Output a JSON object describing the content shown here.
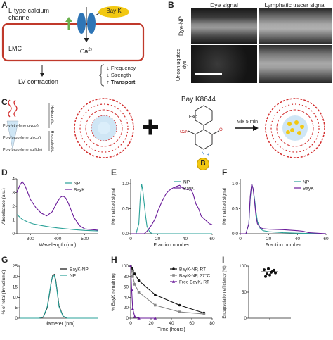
{
  "panel_letters": {
    "A": "A",
    "B": "B",
    "C": "C",
    "D": "D",
    "E": "E",
    "F": "F",
    "G": "G",
    "H": "H",
    "I": "I"
  },
  "panel_a": {
    "channel_label": "L-type calcium channel",
    "bayk": "Bay K",
    "ion": "Ca",
    "ion_sup": "2+",
    "cell": "LMC",
    "outcome": "LV contraction",
    "effects": [
      "Frequency",
      "Strength",
      "Transport"
    ],
    "effect_arrows": [
      "↓",
      "↓",
      "↑"
    ],
    "colors": {
      "membrane": "#c0392b",
      "channel": "#2e75b6",
      "bayk": "#f2c811",
      "arrow": "#6ab04c"
    }
  },
  "panel_b": {
    "col_headers": [
      "Dye signal",
      "Lymphatic tracer signal"
    ],
    "row_labels": [
      "Dye-NP",
      "Unconjugated dye"
    ]
  },
  "panel_c": {
    "layers": [
      "Poly(ethylene glycol)",
      "Poly(propylene glycol)",
      "Poly(propylene sulfide)"
    ],
    "side_labels": [
      "Hydrophilic",
      "Hydrophobic"
    ],
    "drug_name": "Bay K8644",
    "chem": {
      "cf3": "F3C",
      "no2": "O2N",
      "nh": "N",
      "h": "H",
      "o": "O"
    },
    "badge": "B",
    "mix_label": "Mix 5 min"
  },
  "chart_data": [
    {
      "panel": "D",
      "type": "line",
      "xlabel": "Wavelength (nm)",
      "ylabel": "Absorbance (a.u.)",
      "xlim": [
        250,
        550
      ],
      "ylim": [
        0,
        4
      ],
      "xticks": [
        300,
        400,
        500
      ],
      "yticks": [
        0,
        1,
        2,
        3,
        4
      ],
      "series": [
        {
          "name": "NP",
          "color": "#2aa198",
          "x": [
            250,
            270,
            290,
            310,
            340,
            370,
            400,
            430,
            460,
            500,
            550
          ],
          "y": [
            1.4,
            1.05,
            0.85,
            0.72,
            0.6,
            0.5,
            0.42,
            0.36,
            0.3,
            0.24,
            0.2
          ]
        },
        {
          "name": "BayK",
          "color": "#6a1b9a",
          "x": [
            250,
            260,
            270,
            280,
            290,
            300,
            320,
            340,
            360,
            380,
            400,
            410,
            420,
            430,
            440,
            460,
            480,
            500,
            550
          ],
          "y": [
            3.0,
            3.5,
            3.8,
            3.5,
            3.0,
            2.5,
            1.9,
            1.5,
            1.3,
            1.6,
            2.35,
            2.65,
            2.75,
            2.6,
            2.2,
            1.2,
            0.6,
            0.35,
            0.25
          ]
        }
      ]
    },
    {
      "panel": "E",
      "type": "line",
      "xlabel": "Fraction number",
      "ylabel": "Normalized signal",
      "xlim": [
        0,
        60
      ],
      "ylim": [
        0,
        1.1
      ],
      "xticks": [
        0,
        20,
        40,
        60
      ],
      "yticks": [
        0.0,
        0.5,
        1.0
      ],
      "series": [
        {
          "name": "NP",
          "color": "#2aa198",
          "x": [
            0,
            4,
            6,
            7,
            8,
            9,
            10,
            11,
            12,
            14,
            16,
            20,
            60
          ],
          "y": [
            0,
            0,
            0.2,
            0.7,
            1.0,
            0.85,
            0.6,
            0.35,
            0.15,
            0.03,
            0,
            0,
            0
          ]
        },
        {
          "name": "BayK",
          "color": "#6a1b9a",
          "x": [
            0,
            10,
            12,
            14,
            16,
            18,
            20,
            22,
            24,
            26,
            28,
            30,
            32,
            34,
            36,
            38,
            40,
            42,
            44,
            46,
            48,
            50,
            52,
            54,
            56,
            58,
            60
          ],
          "y": [
            0,
            0,
            0.05,
            0.12,
            0.2,
            0.3,
            0.45,
            0.58,
            0.7,
            0.8,
            0.86,
            0.9,
            0.93,
            0.95,
            0.97,
            0.92,
            0.9,
            0.88,
            0.9,
            0.8,
            0.6,
            0.5,
            0.35,
            0.3,
            0.25,
            0.2,
            0.18
          ]
        }
      ]
    },
    {
      "panel": "F",
      "type": "line",
      "xlabel": "Fraction number",
      "ylabel": "Normalized signal",
      "xlim": [
        0,
        60
      ],
      "ylim": [
        0,
        1.1
      ],
      "xticks": [
        0,
        20,
        40,
        60
      ],
      "yticks": [
        0.0,
        0.5,
        1.0
      ],
      "series": [
        {
          "name": "NP",
          "color": "#2aa198",
          "x": [
            0,
            4,
            6,
            7,
            8,
            9,
            10,
            11,
            12,
            14,
            16,
            20,
            30,
            40,
            60
          ],
          "y": [
            0,
            0,
            0.2,
            0.7,
            1.0,
            0.9,
            0.7,
            0.45,
            0.25,
            0.1,
            0.06,
            0.04,
            0.02,
            0.01,
            0
          ]
        },
        {
          "name": "BayK",
          "color": "#6a1b9a",
          "x": [
            0,
            4,
            6,
            7,
            8,
            9,
            10,
            11,
            12,
            14,
            16,
            20,
            30,
            40,
            44,
            48,
            60
          ],
          "y": [
            0,
            0,
            0.2,
            0.75,
            1.0,
            0.9,
            0.65,
            0.35,
            0.2,
            0.12,
            0.1,
            0.09,
            0.08,
            0.06,
            0.05,
            0.02,
            0
          ]
        }
      ]
    },
    {
      "panel": "G",
      "type": "line",
      "xlabel": "Diameter (nm)",
      "ylabel": "% of total (by volume)",
      "xlim": [
        0,
        100
      ],
      "ylim": [
        0,
        25
      ],
      "xticks": [],
      "yticks": [
        0,
        5,
        10,
        15,
        20,
        25
      ],
      "series": [
        {
          "name": "BayK-NP",
          "color": "#111111",
          "x": [
            0,
            25,
            30,
            35,
            38,
            40,
            42,
            44,
            46,
            48,
            50,
            55,
            60,
            100
          ],
          "y": [
            0,
            0,
            0.5,
            5,
            12,
            17,
            20.5,
            21,
            18,
            12,
            6,
            1,
            0,
            0
          ]
        },
        {
          "name": "NP",
          "color": "#2aa198",
          "x": [
            0,
            25,
            30,
            35,
            38,
            40,
            42,
            44,
            46,
            48,
            50,
            55,
            60,
            100
          ],
          "y": [
            0,
            0,
            0.6,
            5.5,
            12.5,
            17.5,
            20,
            20.5,
            17.5,
            11.5,
            5.5,
            1,
            0,
            0
          ]
        }
      ]
    },
    {
      "panel": "H",
      "type": "line",
      "xlabel": "Time (hours)",
      "ylabel": "% BayK remaining",
      "xlim": [
        0,
        80
      ],
      "ylim": [
        0,
        100
      ],
      "xticks": [
        0,
        20,
        40,
        60,
        80
      ],
      "yticks": [
        0,
        20,
        40,
        60,
        80,
        100
      ],
      "series": [
        {
          "name": "BayK-NP, RT",
          "color": "#111111",
          "marker": "circle",
          "x": [
            0,
            1,
            2,
            4,
            8,
            24,
            48,
            72
          ],
          "y": [
            100,
            96,
            92,
            85,
            72,
            45,
            25,
            10
          ]
        },
        {
          "name": "BayK-NP, 37°C",
          "color": "#888888",
          "marker": "square",
          "x": [
            0,
            1,
            2,
            4,
            8,
            24,
            48,
            72
          ],
          "y": [
            100,
            90,
            80,
            65,
            50,
            25,
            12,
            8
          ]
        },
        {
          "name": "Free BayK, RT",
          "color": "#6a1b9a",
          "marker": "triangle",
          "x": [
            0,
            1,
            2,
            4,
            8,
            24
          ],
          "y": [
            100,
            55,
            18,
            3,
            0,
            0
          ]
        }
      ]
    },
    {
      "panel": "I",
      "type": "scatter",
      "xlabel": "",
      "ylabel": "Encapsulation efficiency (%)",
      "ylim": [
        0,
        100
      ],
      "yticks": [
        0,
        50,
        100
      ],
      "series": [
        {
          "name": "",
          "color": "#111111",
          "values": [
            80,
            95,
            88,
            92,
            85,
            90,
            83,
            93,
            87
          ]
        }
      ],
      "mean": 89
    }
  ]
}
